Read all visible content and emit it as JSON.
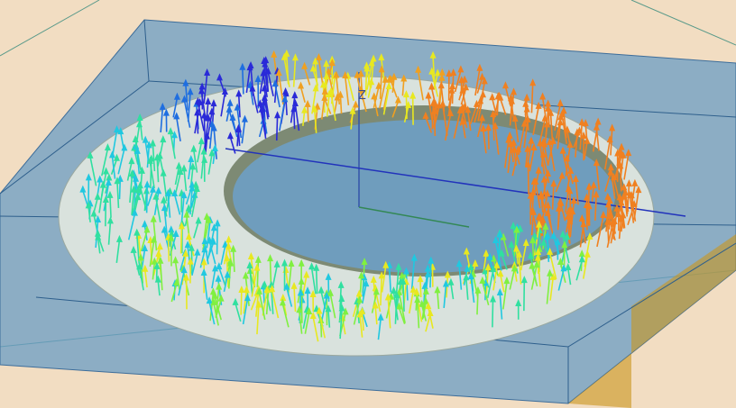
{
  "axis_label": "Z"
}
